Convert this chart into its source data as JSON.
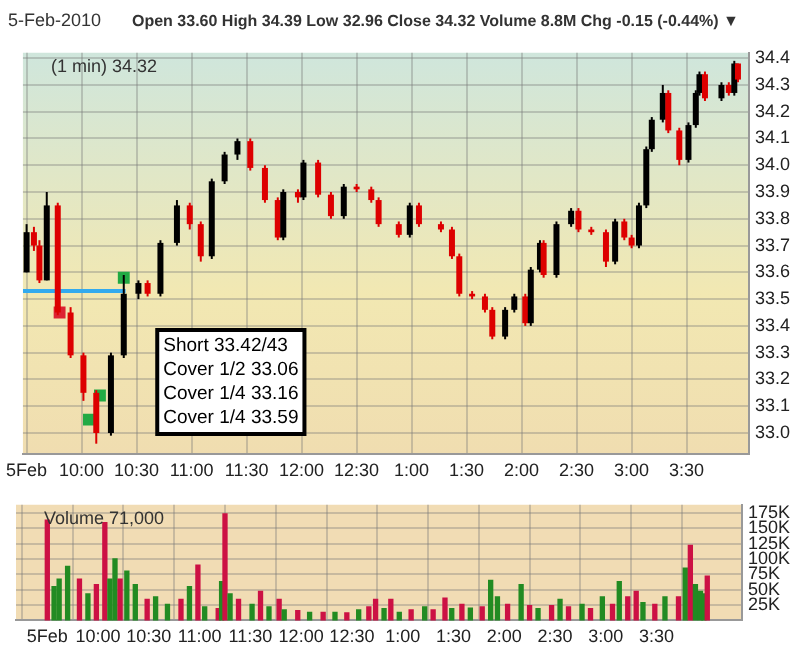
{
  "chart_data": [
    {
      "type": "candlestick",
      "title": "5-Feb-2010",
      "subtitle": "Open 33.60  High 34.39  Low 32.96  Close 34.32  Volume 8.8M  Chg -0.15 (-0.44%) ▼",
      "annotations": [
        "(1 min) 34.32",
        "Short 33.42/43",
        "Cover 1/2 33.06",
        "Cover 1/4 33.16",
        "Cover 1/4 33.59"
      ],
      "x": [
        "2010-02-05T09:30",
        "2010-02-05T09:34",
        "2010-02-05T09:37",
        "2010-02-05T09:41",
        "2010-02-05T09:47",
        "2010-02-05T09:54",
        "2010-02-05T10:01",
        "2010-02-05T10:08",
        "2010-02-05T10:16",
        "2010-02-05T10:23",
        "2010-02-05T10:31",
        "2010-02-05T10:36",
        "2010-02-05T10:43",
        "2010-02-05T10:52",
        "2010-02-05T10:59",
        "2010-02-05T11:05",
        "2010-02-05T11:11",
        "2010-02-05T11:18",
        "2010-02-05T11:25",
        "2010-02-05T11:32",
        "2010-02-05T11:40",
        "2010-02-05T11:47",
        "2010-02-05T11:50",
        "2010-02-05T11:58",
        "2010-02-05T12:01",
        "2010-02-05T12:09",
        "2010-02-05T12:16",
        "2010-02-05T12:23",
        "2010-02-05T12:30",
        "2010-02-05T12:38",
        "2010-02-05T12:42",
        "2010-02-05T12:53",
        "2010-02-05T12:59",
        "2010-02-05T13:04",
        "2010-02-05T13:16",
        "2010-02-05T13:22",
        "2010-02-05T13:26",
        "2010-02-05T13:33",
        "2010-02-05T13:40",
        "2010-02-05T13:44",
        "2010-02-05T13:51",
        "2010-02-05T13:56",
        "2010-02-05T14:02",
        "2010-02-05T14:05",
        "2010-02-05T14:10",
        "2010-02-05T14:12",
        "2010-02-05T14:19",
        "2010-02-05T14:27",
        "2010-02-05T14:31",
        "2010-02-05T14:38",
        "2010-02-05T14:46",
        "2010-02-05T14:51",
        "2010-02-05T14:56",
        "2010-02-05T15:00",
        "2010-02-05T15:04",
        "2010-02-05T15:08",
        "2010-02-05T15:11",
        "2010-02-05T15:17",
        "2010-02-05T15:20",
        "2010-02-05T15:26",
        "2010-02-05T15:31",
        "2010-02-05T15:35",
        "2010-02-05T15:37",
        "2010-02-05T15:40",
        "2010-02-05T15:49",
        "2010-02-05T15:53",
        "2010-02-05T15:56",
        "2010-02-05T15:58"
      ],
      "ohlc": [
        [
          33.6,
          33.78,
          33.6,
          33.75
        ],
        [
          33.75,
          33.77,
          33.68,
          33.7
        ],
        [
          33.7,
          33.72,
          33.56,
          33.57
        ],
        [
          33.57,
          33.9,
          33.57,
          33.85
        ],
        [
          33.85,
          33.86,
          33.44,
          33.45
        ],
        [
          33.45,
          33.47,
          33.28,
          33.29
        ],
        [
          33.29,
          33.3,
          33.12,
          33.15
        ],
        [
          33.15,
          33.16,
          32.96,
          33.0
        ],
        [
          33.0,
          33.3,
          32.99,
          33.29
        ],
        [
          33.29,
          33.59,
          33.28,
          33.52
        ],
        [
          33.52,
          33.57,
          33.5,
          33.56
        ],
        [
          33.56,
          33.57,
          33.51,
          33.52
        ],
        [
          33.52,
          33.72,
          33.51,
          33.71
        ],
        [
          33.71,
          33.87,
          33.7,
          33.85
        ],
        [
          33.85,
          33.86,
          33.76,
          33.78
        ],
        [
          33.78,
          33.79,
          33.64,
          33.66
        ],
        [
          33.66,
          33.95,
          33.65,
          33.94
        ],
        [
          33.94,
          34.05,
          33.93,
          34.04
        ],
        [
          34.04,
          34.1,
          34.02,
          34.09
        ],
        [
          34.09,
          34.1,
          33.98,
          33.99
        ],
        [
          33.99,
          34.0,
          33.86,
          33.87
        ],
        [
          33.87,
          33.88,
          33.72,
          33.73
        ],
        [
          33.73,
          33.91,
          33.72,
          33.9
        ],
        [
          33.9,
          33.91,
          33.86,
          33.88
        ],
        [
          33.88,
          34.02,
          33.87,
          34.01
        ],
        [
          34.01,
          34.02,
          33.88,
          33.89
        ],
        [
          33.89,
          33.9,
          33.8,
          33.81
        ],
        [
          33.81,
          33.93,
          33.8,
          33.92
        ],
        [
          33.92,
          33.93,
          33.9,
          33.91
        ],
        [
          33.91,
          33.92,
          33.86,
          33.87
        ],
        [
          33.87,
          33.88,
          33.77,
          33.78
        ],
        [
          33.78,
          33.79,
          33.73,
          33.74
        ],
        [
          33.74,
          33.86,
          33.73,
          33.85
        ],
        [
          33.85,
          33.86,
          33.77,
          33.78
        ],
        [
          33.78,
          33.79,
          33.75,
          33.76
        ],
        [
          33.76,
          33.77,
          33.65,
          33.66
        ],
        [
          33.66,
          33.67,
          33.51,
          33.52
        ],
        [
          33.52,
          33.53,
          33.5,
          33.51
        ],
        [
          33.51,
          33.52,
          33.45,
          33.46
        ],
        [
          33.46,
          33.47,
          33.35,
          33.36
        ],
        [
          33.36,
          33.47,
          33.35,
          33.46
        ],
        [
          33.46,
          33.52,
          33.45,
          33.51
        ],
        [
          33.51,
          33.52,
          33.4,
          33.41
        ],
        [
          33.41,
          33.62,
          33.4,
          33.61
        ],
        [
          33.61,
          33.72,
          33.6,
          33.71
        ],
        [
          33.71,
          33.72,
          33.58,
          33.59
        ],
        [
          33.59,
          33.79,
          33.58,
          33.78
        ],
        [
          33.78,
          33.84,
          33.77,
          33.83
        ],
        [
          33.83,
          33.84,
          33.75,
          33.76
        ],
        [
          33.76,
          33.77,
          33.74,
          33.75
        ],
        [
          33.75,
          33.76,
          33.62,
          33.64
        ],
        [
          33.64,
          33.8,
          33.63,
          33.79
        ],
        [
          33.79,
          33.8,
          33.72,
          33.73
        ],
        [
          33.73,
          33.74,
          33.69,
          33.7
        ],
        [
          33.7,
          33.86,
          33.69,
          33.85
        ],
        [
          33.85,
          34.07,
          33.84,
          34.06
        ],
        [
          34.06,
          34.18,
          34.05,
          34.17
        ],
        [
          34.17,
          34.3,
          34.16,
          34.27
        ],
        [
          34.27,
          34.28,
          34.12,
          34.13
        ],
        [
          34.13,
          34.14,
          34.0,
          34.02
        ],
        [
          34.02,
          34.16,
          34.01,
          34.15
        ],
        [
          34.15,
          34.28,
          34.14,
          34.27
        ],
        [
          34.27,
          34.35,
          34.26,
          34.34
        ],
        [
          34.34,
          34.35,
          34.24,
          34.25
        ],
        [
          34.25,
          34.31,
          34.24,
          34.3
        ],
        [
          34.3,
          34.31,
          34.26,
          34.27
        ],
        [
          34.27,
          34.39,
          34.26,
          34.38
        ],
        [
          34.38,
          34.38,
          34.31,
          34.32
        ]
      ],
      "series": [
        {
          "type": "line",
          "color": "#33aaee",
          "marker": "none",
          "x": [
            "2010-02-05T09:28",
            "2010-02-05T10:24"
          ],
          "values": [
            33.53,
            33.53
          ]
        },
        {
          "type": "scatter",
          "color": "#dd2233",
          "x": [
            "2010-02-05T09:48"
          ],
          "values": [
            33.45
          ]
        },
        {
          "type": "scatter",
          "color": "#22aa44",
          "x": [
            "2010-02-05T10:04",
            "2010-02-05T10:10",
            "2010-02-05T10:23"
          ],
          "values": [
            33.05,
            33.14,
            33.58
          ]
        }
      ],
      "marker": "square",
      "grid": true,
      "legend": false,
      "xlim": [
        "2010-02-05T09:28",
        "2010-02-05T16:04"
      ],
      "xticks": [
        {
          "value": "2010-02-05T09:30",
          "label": "5Feb"
        },
        {
          "value": "2010-02-05T10:00",
          "label": "10:00"
        },
        {
          "value": "2010-02-05T10:30",
          "label": "10:30"
        },
        {
          "value": "2010-02-05T11:00",
          "label": "11:00"
        },
        {
          "value": "2010-02-05T11:30",
          "label": "11:30"
        },
        {
          "value": "2010-02-05T12:00",
          "label": "12:00"
        },
        {
          "value": "2010-02-05T12:30",
          "label": "12:30"
        },
        {
          "value": "2010-02-05T13:00",
          "label": "1:00"
        },
        {
          "value": "2010-02-05T13:30",
          "label": "1:30"
        },
        {
          "value": "2010-02-05T14:00",
          "label": "2:00"
        },
        {
          "value": "2010-02-05T14:30",
          "label": "2:30"
        },
        {
          "value": "2010-02-05T15:00",
          "label": "3:00"
        },
        {
          "value": "2010-02-05T15:30",
          "label": "3:30"
        }
      ],
      "ylim": [
        32.92,
        34.42
      ],
      "yticks": [
        {
          "value": 33,
          "label": "33.0"
        },
        33.1,
        33.2,
        33.3,
        33.4,
        33.5,
        33.6,
        33.7,
        33.8,
        33.9,
        {
          "value": 34,
          "label": "34.0"
        },
        34.1,
        34.2,
        34.3,
        34.4
      ]
    },
    {
      "type": "bar",
      "annotations": [
        "Volume 71,000"
      ],
      "x": [
        "2010-02-05T09:30",
        "2010-02-05T09:34",
        "2010-02-05T09:37",
        "2010-02-05T09:42",
        "2010-02-05T09:49",
        "2010-02-05T09:54",
        "2010-02-05T09:59",
        "2010-02-05T10:04",
        "2010-02-05T10:07",
        "2010-02-05T10:10",
        "2010-02-05T10:13",
        "2010-02-05T10:17",
        "2010-02-05T10:22",
        "2010-02-05T10:29",
        "2010-02-05T10:34",
        "2010-02-05T10:41",
        "2010-02-05T10:49",
        "2010-02-05T10:54",
        "2010-02-05T10:59",
        "2010-02-05T11:03",
        "2010-02-05T11:11",
        "2010-02-05T11:13",
        "2010-02-05T11:15",
        "2010-02-05T11:18",
        "2010-02-05T11:23",
        "2010-02-05T11:31",
        "2010-02-05T11:36",
        "2010-02-05T11:41",
        "2010-02-05T11:47",
        "2010-02-05T11:50",
        "2010-02-05T11:58",
        "2010-02-05T12:05",
        "2010-02-05T12:13",
        "2010-02-05T12:20",
        "2010-02-05T12:27",
        "2010-02-05T12:34",
        "2010-02-05T12:40",
        "2010-02-05T12:44",
        "2010-02-05T12:49",
        "2010-02-05T12:53",
        "2010-02-05T12:58",
        "2010-02-05T13:05",
        "2010-02-05T13:13",
        "2010-02-05T13:18",
        "2010-02-05T13:25",
        "2010-02-05T13:29",
        "2010-02-05T13:35",
        "2010-02-05T13:40",
        "2010-02-05T13:47",
        "2010-02-05T13:52",
        "2010-02-05T13:56",
        "2010-02-05T14:02",
        "2010-02-05T14:10",
        "2010-02-05T14:15",
        "2010-02-05T14:20",
        "2010-02-05T14:28",
        "2010-02-05T14:33",
        "2010-02-05T14:38",
        "2010-02-05T14:46",
        "2010-02-05T14:51",
        "2010-02-05T14:58",
        "2010-02-05T15:04",
        "2010-02-05T15:08",
        "2010-02-05T15:13",
        "2010-02-05T15:18",
        "2010-02-05T15:22",
        "2010-02-05T15:29",
        "2010-02-05T15:35",
        "2010-02-05T15:43",
        "2010-02-05T15:47",
        "2010-02-05T15:50",
        "2010-02-05T15:53",
        "2010-02-05T15:56",
        "2010-02-05T15:58",
        "2010-02-05T16:00"
      ],
      "values": [
        163000,
        55000,
        67000,
        88000,
        67000,
        43000,
        58000,
        159000,
        67000,
        100000,
        67000,
        80000,
        58000,
        34000,
        38000,
        26000,
        34000,
        55000,
        90000,
        22000,
        19000,
        63000,
        173000,
        43000,
        34000,
        26000,
        47000,
        22000,
        34000,
        17000,
        16000,
        13000,
        13000,
        13000,
        12000,
        17000,
        22000,
        34000,
        19000,
        34000,
        13000,
        17000,
        22000,
        17000,
        36000,
        19000,
        26000,
        20000,
        22000,
        65000,
        38000,
        26000,
        58000,
        24000,
        19000,
        24000,
        34000,
        22000,
        26000,
        19000,
        38000,
        26000,
        63000,
        38000,
        47000,
        29000,
        26000,
        38000,
        38000,
        85000,
        122000,
        58000,
        47000,
        43000,
        72000
      ],
      "colors": [
        "#cc1144",
        "#228b22",
        "#228b22",
        "#228b22",
        "#cc1144",
        "#228b22",
        "#cc1144",
        "#cc1144",
        "#228b22",
        "#228b22",
        "#cc1144",
        "#228b22",
        "#228b22",
        "#cc1144",
        "#228b22",
        "#228b22",
        "#cc1144",
        "#228b22",
        "#cc1144",
        "#228b22",
        "#cc1144",
        "#228b22",
        "#cc1144",
        "#228b22",
        "#cc1144",
        "#228b22",
        "#cc1144",
        "#228b22",
        "#cc1144",
        "#228b22",
        "#cc1144",
        "#228b22",
        "#cc1144",
        "#228b22",
        "#cc1144",
        "#228b22",
        "#cc1144",
        "#cc1144",
        "#228b22",
        "#cc1144",
        "#228b22",
        "#cc1144",
        "#228b22",
        "#cc1144",
        "#cc1144",
        "#228b22",
        "#cc1144",
        "#228b22",
        "#cc1144",
        "#228b22",
        "#228b22",
        "#cc1144",
        "#228b22",
        "#cc1144",
        "#228b22",
        "#cc1144",
        "#228b22",
        "#cc1144",
        "#228b22",
        "#cc1144",
        "#228b22",
        "#cc1144",
        "#228b22",
        "#cc1144",
        "#cc1144",
        "#228b22",
        "#cc1144",
        "#228b22",
        "#cc1144",
        "#228b22",
        "#cc1144",
        "#228b22",
        "#228b22",
        "#228b22",
        "#cc1144"
      ],
      "grid": true,
      "legend": false,
      "xlim": [
        "2010-02-05T09:28",
        "2010-02-05T16:04"
      ],
      "xticks": [
        {
          "value": "2010-02-05T09:30",
          "label": "5Feb"
        },
        {
          "value": "2010-02-05T10:00",
          "label": "10:00"
        },
        {
          "value": "2010-02-05T10:30",
          "label": "10:30"
        },
        {
          "value": "2010-02-05T11:00",
          "label": "11:00"
        },
        {
          "value": "2010-02-05T11:30",
          "label": "11:30"
        },
        {
          "value": "2010-02-05T12:00",
          "label": "12:00"
        },
        {
          "value": "2010-02-05T12:30",
          "label": "12:30"
        },
        {
          "value": "2010-02-05T13:00",
          "label": "1:00"
        },
        {
          "value": "2010-02-05T13:30",
          "label": "1:30"
        },
        {
          "value": "2010-02-05T14:00",
          "label": "2:00"
        },
        {
          "value": "2010-02-05T14:30",
          "label": "2:30"
        },
        {
          "value": "2010-02-05T15:00",
          "label": "3:00"
        },
        {
          "value": "2010-02-05T15:30",
          "label": "3:30"
        }
      ],
      "ylim": [
        0,
        188000
      ],
      "yticks": [
        {
          "value": 25000,
          "label": "25K"
        },
        {
          "value": 50000,
          "label": "50K"
        },
        {
          "value": 75000,
          "label": "75K"
        },
        {
          "value": 100000,
          "label": "100K"
        },
        {
          "value": 125000,
          "label": "125K"
        },
        {
          "value": 150000,
          "label": "150K"
        },
        {
          "value": 175000,
          "label": "175K"
        }
      ]
    }
  ]
}
